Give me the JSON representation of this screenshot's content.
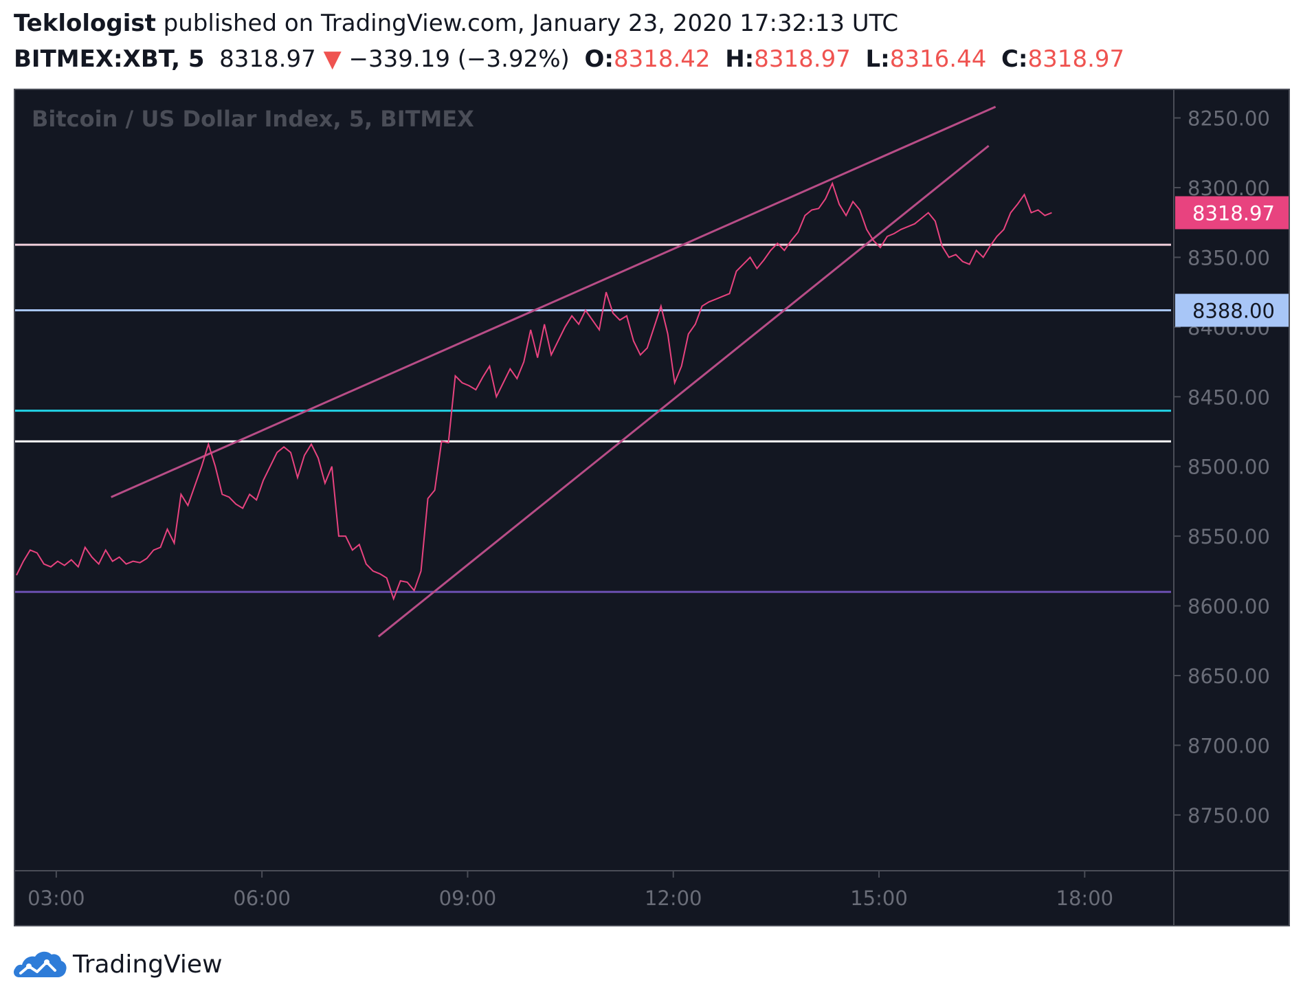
{
  "header": {
    "author": "Teklologist",
    "published_text": " published on TradingView.com, January 23, 2020 17:32:13 UTC",
    "symbol": "BITMEX:XBT, 5",
    "last_price": "8318.97",
    "change_arrow": "▼",
    "change": "−339.19 (−3.92%)",
    "o_label": "O:",
    "o_value": "8318.42",
    "h_label": "H:",
    "h_value": "8318.97",
    "l_label": "L:",
    "l_value": "8316.44",
    "c_label": "C:",
    "c_value": "8318.97"
  },
  "footer": {
    "brand": "TradingView"
  },
  "colors": {
    "background": "#131722",
    "price_line": "#e8437f",
    "trendline": "#b84d87",
    "price_label_bg": "#e8437f",
    "level_label_bg": "#a8c6f7",
    "axis_text": "#6a6d78",
    "header_red": "#ef5350"
  },
  "chart_data": {
    "type": "line",
    "title": "Bitcoin / US Dollar Index, 5, BITMEX",
    "y_axis": {
      "inverted": true,
      "ylim": [
        8230,
        8790
      ],
      "ticks": [
        "8250.00",
        "8300.00",
        "8350.00",
        "8400.00",
        "8450.00",
        "8500.00",
        "8550.00",
        "8600.00",
        "8650.00",
        "8700.00",
        "8750.00"
      ]
    },
    "x_axis": {
      "xlim_hours": [
        2.4,
        19.3
      ],
      "ticks": [
        "03:00",
        "06:00",
        "09:00",
        "12:00",
        "15:00",
        "18:00"
      ]
    },
    "price_label": "8318.97",
    "level_label": "8388.00",
    "horizontal_levels": [
      {
        "price": 8341,
        "color": "#f2d0dc"
      },
      {
        "price": 8388,
        "color": "#a8c6f7"
      },
      {
        "price": 8460,
        "color": "#22d3e6"
      },
      {
        "price": 8482,
        "color": "#ffffff"
      },
      {
        "price": 8590,
        "color": "#6a4fb0"
      }
    ],
    "trendlines": [
      {
        "from": {
          "t": 3.8,
          "price": 8522
        },
        "to": {
          "t": 16.7,
          "price": 8242
        }
      },
      {
        "from": {
          "t": 7.7,
          "price": 8622
        },
        "to": {
          "t": 16.6,
          "price": 8270
        }
      }
    ],
    "series": [
      {
        "t": [
          2.42,
          2.52,
          2.62,
          2.72,
          2.82,
          2.92,
          3.02,
          3.12,
          3.22,
          3.32,
          3.42,
          3.52,
          3.62,
          3.72,
          3.82,
          3.92,
          4.02,
          4.12,
          4.22,
          4.32,
          4.42,
          4.52,
          4.62,
          4.72,
          4.82,
          4.92,
          5.02,
          5.12,
          5.22,
          5.32,
          5.42,
          5.52,
          5.62,
          5.72,
          5.82,
          5.92,
          6.02,
          6.12,
          6.22,
          6.32,
          6.42,
          6.52,
          6.62,
          6.72,
          6.82,
          6.92,
          7.02,
          7.12,
          7.22,
          7.32,
          7.42,
          7.52,
          7.62,
          7.72,
          7.82,
          7.92,
          8.02,
          8.12,
          8.22,
          8.32,
          8.42,
          8.52,
          8.62,
          8.72,
          8.82,
          8.92,
          9.02,
          9.12,
          9.22,
          9.32,
          9.42,
          9.52,
          9.62,
          9.72,
          9.82,
          9.92,
          10.02,
          10.12,
          10.22,
          10.32,
          10.42,
          10.52,
          10.62,
          10.72,
          10.82,
          10.92,
          11.02,
          11.12,
          11.22,
          11.32,
          11.42,
          11.52,
          11.62,
          11.72,
          11.82,
          11.92,
          12.02,
          12.12,
          12.22,
          12.32,
          12.42,
          12.52,
          12.62,
          12.72,
          12.82,
          12.92,
          13.02,
          13.12,
          13.22,
          13.32,
          13.42,
          13.52,
          13.62,
          13.72,
          13.82,
          13.92,
          14.02,
          14.12,
          14.22,
          14.32,
          14.42,
          14.52,
          14.62,
          14.72,
          14.82,
          14.92,
          15.02,
          15.12,
          15.22,
          15.32,
          15.42,
          15.52,
          15.62,
          15.72,
          15.82,
          15.92,
          16.02,
          16.12,
          16.22,
          16.32,
          16.42,
          16.52,
          16.62,
          16.72,
          16.82,
          16.92,
          17.02,
          17.12,
          17.22,
          17.32,
          17.42,
          17.52
        ],
        "price": [
          8578,
          8568,
          8560,
          8562,
          8570,
          8572,
          8568,
          8571,
          8567,
          8572,
          8558,
          8565,
          8570,
          8560,
          8568,
          8565,
          8570,
          8568,
          8569,
          8566,
          8560,
          8558,
          8545,
          8555,
          8520,
          8528,
          8514,
          8500,
          8484,
          8500,
          8520,
          8522,
          8527,
          8530,
          8520,
          8524,
          8510,
          8500,
          8490,
          8486,
          8490,
          8508,
          8492,
          8484,
          8494,
          8512,
          8500,
          8550,
          8550,
          8560,
          8556,
          8570,
          8575,
          8577,
          8580,
          8595,
          8582,
          8583,
          8589,
          8575,
          8523,
          8517,
          8482,
          8483,
          8435,
          8440,
          8442,
          8445,
          8436,
          8428,
          8450,
          8440,
          8430,
          8437,
          8425,
          8402,
          8422,
          8398,
          8420,
          8410,
          8400,
          8392,
          8398,
          8388,
          8395,
          8402,
          8375,
          8390,
          8395,
          8392,
          8410,
          8420,
          8415,
          8400,
          8385,
          8405,
          8440,
          8428,
          8405,
          8398,
          8385,
          8382,
          8380,
          8378,
          8376,
          8360,
          8355,
          8350,
          8358,
          8352,
          8345,
          8340,
          8345,
          8338,
          8332,
          8320,
          8316,
          8315,
          8308,
          8297,
          8312,
          8320,
          8310,
          8316,
          8330,
          8338,
          8343,
          8335,
          8333,
          8330,
          8328,
          8326,
          8322,
          8318,
          8324,
          8342,
          8350,
          8348,
          8353,
          8355,
          8345,
          8350,
          8342,
          8335,
          8330,
          8318,
          8312,
          8305,
          8318,
          8316,
          8320,
          8318
        ]
      }
    ]
  }
}
